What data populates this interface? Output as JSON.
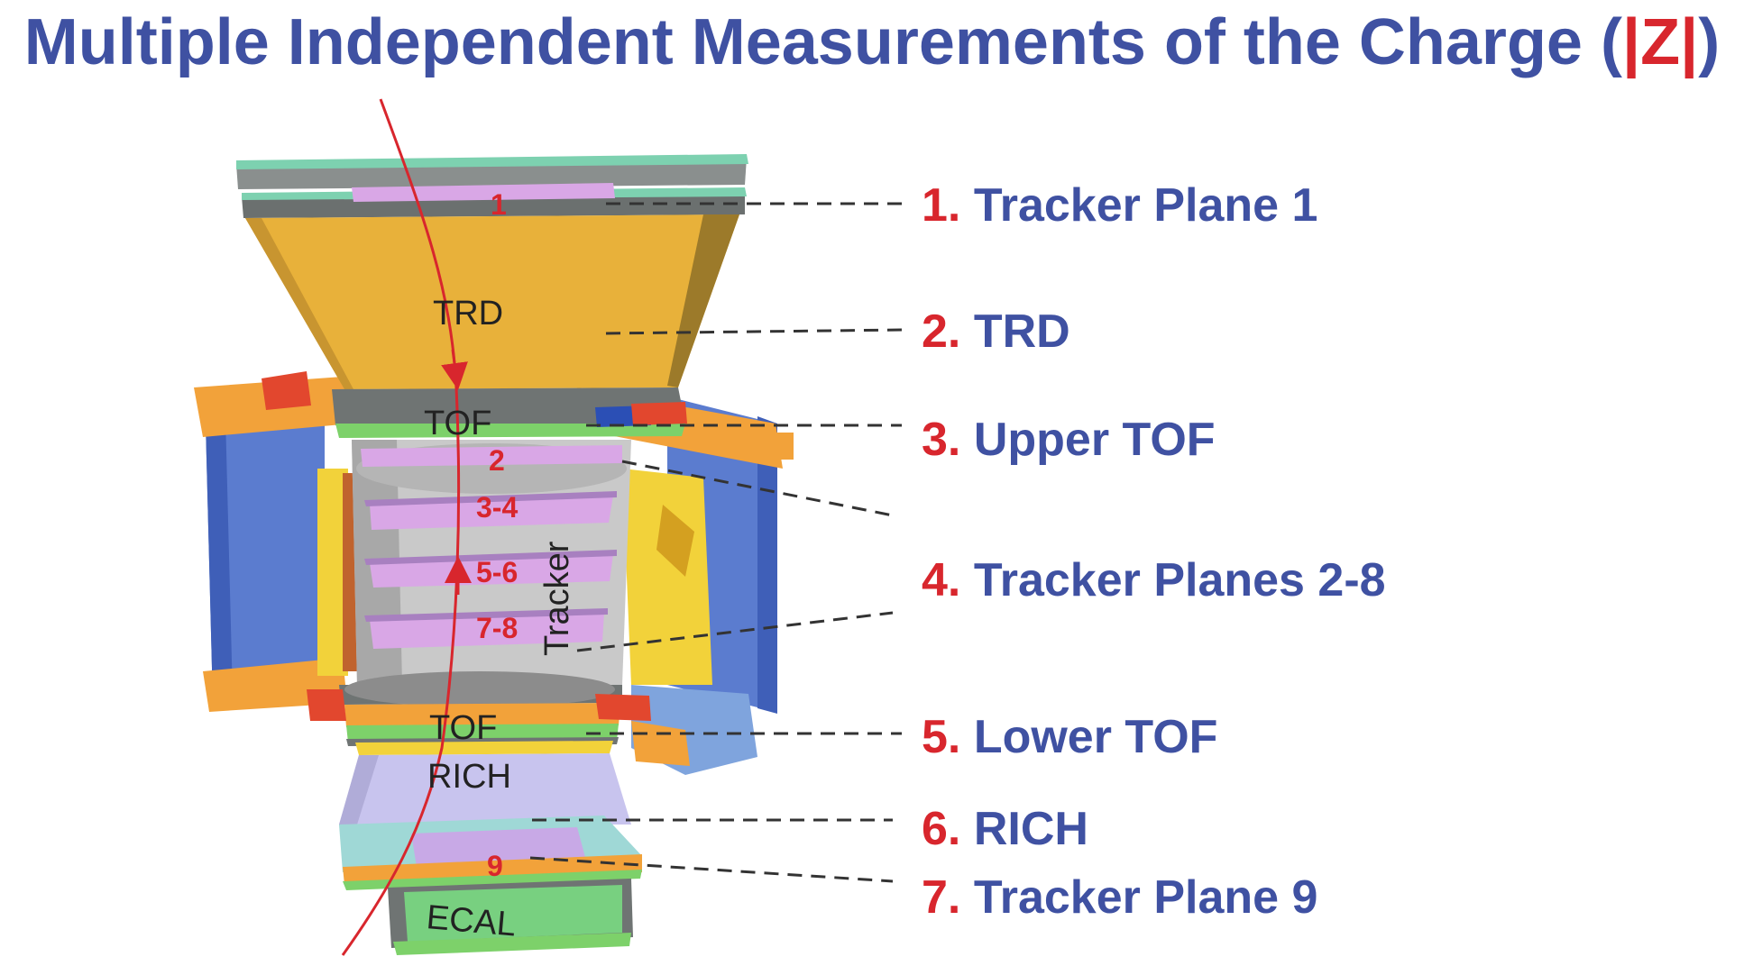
{
  "title": {
    "prefix": "Multiple Independent Measurements of the Charge (",
    "z": "|Z|",
    "suffix": ")"
  },
  "colors": {
    "title_blue": "#3f51a2",
    "number_red": "#d8262d",
    "track_red": "#d8262d",
    "trd_gold": "#e8b13a",
    "tracker_pink": "#d9a7e6",
    "magnet_blue": "#5b7ccf"
  },
  "detector_labels": {
    "trd": "TRD",
    "upper_tof": "TOF",
    "tracker": "Tracker",
    "lower_tof": "TOF",
    "rich": "RICH",
    "ecal": "ECAL"
  },
  "plane_labels": {
    "p1": "1",
    "p2": "2",
    "p34": "3-4",
    "p56": "5-6",
    "p78": "7-8",
    "p9": "9"
  },
  "legend": [
    {
      "num": "1.",
      "label": "Tracker Plane 1"
    },
    {
      "num": "2.",
      "label": "TRD"
    },
    {
      "num": "3.",
      "label": "Upper TOF"
    },
    {
      "num": "4.",
      "label": "Tracker Planes 2-8"
    },
    {
      "num": "5.",
      "label": "Lower TOF"
    },
    {
      "num": "6.",
      "label": "RICH"
    },
    {
      "num": "7.",
      "label": "Tracker Plane 9"
    }
  ]
}
